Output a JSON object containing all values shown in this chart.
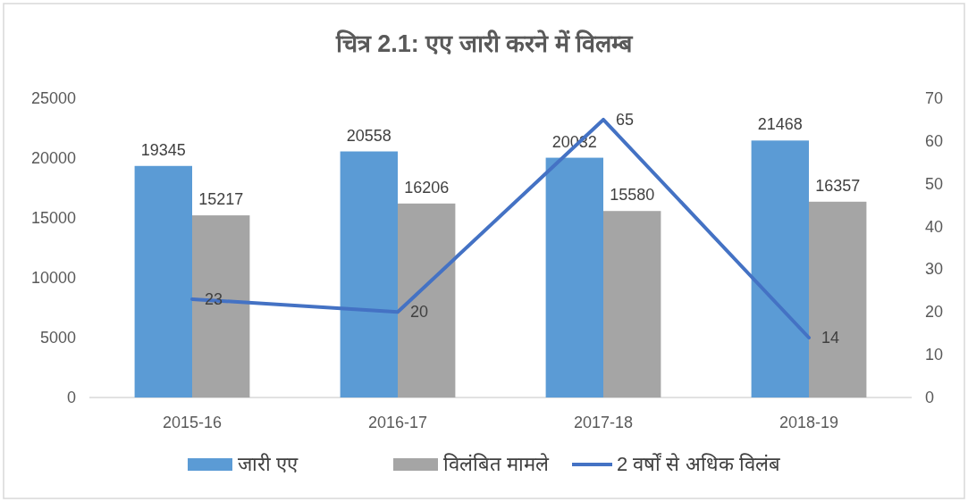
{
  "chart_data": {
    "type": "bar",
    "title": "चित्र 2.1: एए जारी करने में विलम्ब",
    "categories": [
      "2015-16",
      "2016-17",
      "2017-18",
      "2018-19"
    ],
    "series": [
      {
        "name": "जारी एए",
        "color": "#5b9bd5",
        "values": [
          19345,
          20558,
          20032,
          21468
        ]
      },
      {
        "name": "विलंबित मामले",
        "color": "#a5a5a5",
        "values": [
          15217,
          16206,
          15580,
          16357
        ]
      },
      {
        "name": "2 वर्षों से अधिक विलंब",
        "type": "line",
        "axis": "y2",
        "color": "#4472c4",
        "values": [
          23,
          20,
          65,
          14
        ]
      }
    ],
    "ylim": [
      0,
      25000
    ],
    "yticks": [
      0,
      5000,
      10000,
      15000,
      20000,
      25000
    ],
    "y2lim": [
      0,
      70
    ],
    "y2ticks": [
      0,
      10,
      20,
      30,
      40,
      50,
      60,
      70
    ],
    "data_labels": true,
    "legend": "bottom",
    "grid": false
  }
}
